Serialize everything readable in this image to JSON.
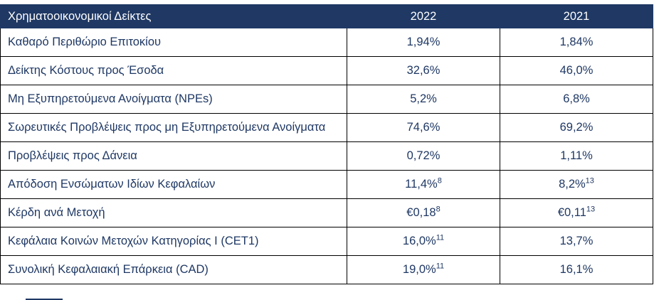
{
  "colors": {
    "header_bg": "#1f3864",
    "body_text": "#1f3864",
    "border": "#000000"
  },
  "table": {
    "header": {
      "label": "Χρηματοοικονομικοί Δείκτες",
      "col2022": "2022",
      "col2021": "2021"
    },
    "rows": [
      {
        "label": "Καθαρό Περιθώριο Επιτοκίου",
        "v2022": "1,94%",
        "sup2022": "",
        "v2021": "1,84%",
        "sup2021": ""
      },
      {
        "label": "Δείκτης Κόστους προς Έσοδα",
        "v2022": "32,6%",
        "sup2022": "",
        "v2021": "46,0%",
        "sup2021": ""
      },
      {
        "label": "Μη Εξυπηρετούμενα Ανοίγματα (NPEs)",
        "v2022": "5,2%",
        "sup2022": "",
        "v2021": "6,8%",
        "sup2021": ""
      },
      {
        "label": "Σωρευτικές Προβλέψεις προς μη Εξυπηρετούμενα Ανοίγματα",
        "v2022": "74,6%",
        "sup2022": "",
        "v2021": "69,2%",
        "sup2021": ""
      },
      {
        "label": "Προβλέψεις προς Δάνεια",
        "v2022": "0,72%",
        "sup2022": "",
        "v2021": "1,11%",
        "sup2021": ""
      },
      {
        "label": "Απόδοση Ενσώματων Ιδίων Κεφαλαίων",
        "v2022": "11,4%",
        "sup2022": "8",
        "v2021": "8,2%",
        "sup2021": "13"
      },
      {
        "label": "Κέρδη ανά Μετοχή",
        "v2022": "€0,18",
        "sup2022": "8",
        "v2021": "€0,11",
        "sup2021": "13"
      },
      {
        "label": "Κεφάλαια Κοινών Μετοχών Κατηγορίας Ι (CET1)",
        "v2022": "16,0%",
        "sup2022": "11",
        "v2021": "13,7%",
        "sup2021": ""
      },
      {
        "label": "Συνολική Κεφαλαιακή Επάρκεια (CAD)",
        "v2022": "19,0%",
        "sup2022": "11",
        "v2021": "16,1%",
        "sup2021": ""
      }
    ]
  }
}
